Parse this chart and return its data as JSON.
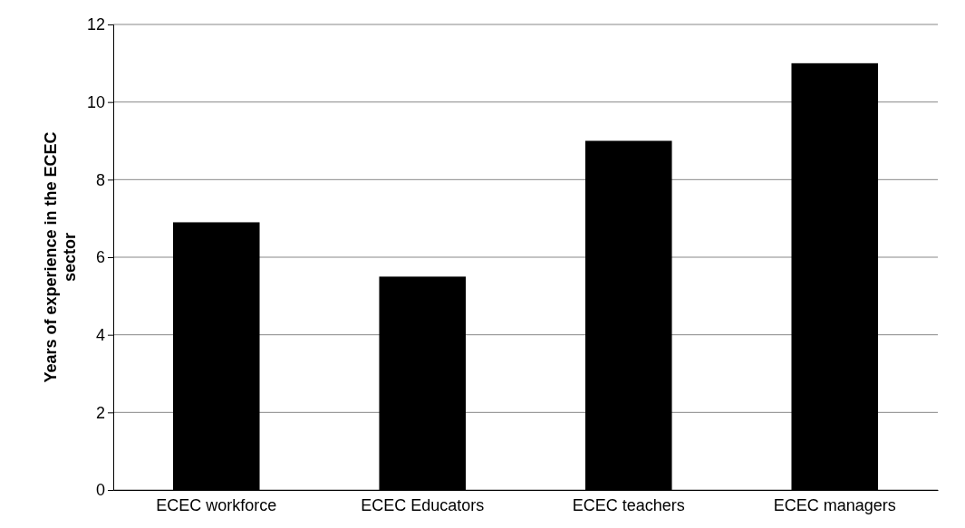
{
  "chart_data": {
    "type": "bar",
    "ylabel": "Years of experience in the ECEC sector",
    "categories": [
      "ECEC workforce",
      "ECEC Educators",
      "ECEC teachers",
      "ECEC managers"
    ],
    "values": [
      6.9,
      5.5,
      9.0,
      11.0
    ],
    "color": "#000000",
    "ylim": [
      0,
      12
    ],
    "yticks": [
      0,
      2,
      4,
      6,
      8,
      10,
      12
    ],
    "grid": "y"
  }
}
